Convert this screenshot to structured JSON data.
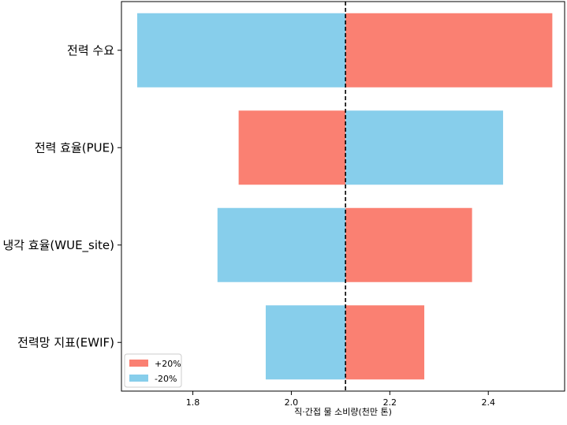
{
  "chart_data": {
    "type": "bar",
    "orientation": "horizontal",
    "title": "",
    "xlabel": "직·간접 물 소비량(천만 톤)",
    "ylabel": "",
    "baseline": 2.11,
    "xlim": [
      1.655,
      2.555
    ],
    "xticks": [
      1.8,
      2.0,
      2.2,
      2.4
    ],
    "xtick_labels": [
      "1.8",
      "2.0",
      "2.2",
      "2.4"
    ],
    "categories": [
      "전력 수요",
      "전력 효율(PUE)",
      "냉각 효율(WUE_site)",
      "전력망 지표(EWIF)"
    ],
    "series": [
      {
        "name": "+20%",
        "color": "#fa8072",
        "values": [
          2.53,
          1.893,
          2.367,
          2.27
        ]
      },
      {
        "name": "-20%",
        "color": "#87ceeb",
        "values": [
          1.687,
          2.43,
          1.85,
          1.948
        ]
      }
    ],
    "legend": {
      "position": "lower-left",
      "labels": [
        "+20%",
        "-20%"
      ]
    },
    "grid": false
  }
}
